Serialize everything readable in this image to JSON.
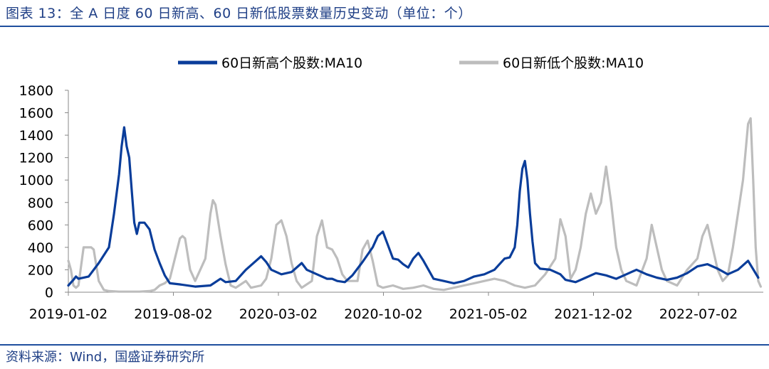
{
  "title": "图表 13：全 A 日度 60 日新高、60 日新低股票数量历史变动（单位：个）",
  "source": "资料来源：Wind，国盛证券研究所",
  "colors": {
    "high": "#0a3d9a",
    "low": "#bdbdbd",
    "accent": "#1f3f86"
  },
  "chart_data": {
    "type": "line",
    "title": "",
    "xlabel": "",
    "ylabel": "",
    "ylim": [
      0,
      1800
    ],
    "yticks": [
      "0",
      "200",
      "400",
      "600",
      "800",
      "1000",
      "1200",
      "1400",
      "1600",
      "1800"
    ],
    "xticks": [
      "2019-01-02",
      "2019-08-02",
      "2020-03-02",
      "2020-10-02",
      "2021-05-02",
      "2021-12-02",
      "2022-07-02"
    ],
    "x_range": [
      0,
      1.37
    ],
    "legend_position": "top",
    "series": [
      {
        "name": "60日新高个股数:MA10",
        "key": "high",
        "points": [
          [
            0,
            60
          ],
          [
            0.01,
            110
          ],
          [
            0.015,
            140
          ],
          [
            0.02,
            120
          ],
          [
            0.04,
            140
          ],
          [
            0.06,
            260
          ],
          [
            0.08,
            400
          ],
          [
            0.09,
            700
          ],
          [
            0.1,
            1050
          ],
          [
            0.105,
            1300
          ],
          [
            0.11,
            1470
          ],
          [
            0.115,
            1300
          ],
          [
            0.12,
            1200
          ],
          [
            0.125,
            900
          ],
          [
            0.13,
            620
          ],
          [
            0.135,
            520
          ],
          [
            0.14,
            620
          ],
          [
            0.15,
            620
          ],
          [
            0.16,
            560
          ],
          [
            0.17,
            380
          ],
          [
            0.18,
            260
          ],
          [
            0.19,
            150
          ],
          [
            0.2,
            80
          ],
          [
            0.22,
            70
          ],
          [
            0.25,
            50
          ],
          [
            0.28,
            60
          ],
          [
            0.3,
            120
          ],
          [
            0.31,
            90
          ],
          [
            0.33,
            100
          ],
          [
            0.35,
            200
          ],
          [
            0.37,
            280
          ],
          [
            0.38,
            320
          ],
          [
            0.39,
            270
          ],
          [
            0.4,
            200
          ],
          [
            0.42,
            160
          ],
          [
            0.44,
            180
          ],
          [
            0.46,
            260
          ],
          [
            0.47,
            200
          ],
          [
            0.49,
            160
          ],
          [
            0.51,
            120
          ],
          [
            0.52,
            120
          ],
          [
            0.53,
            100
          ],
          [
            0.545,
            90
          ],
          [
            0.56,
            150
          ],
          [
            0.58,
            270
          ],
          [
            0.6,
            400
          ],
          [
            0.61,
            500
          ],
          [
            0.62,
            540
          ],
          [
            0.63,
            420
          ],
          [
            0.64,
            300
          ],
          [
            0.65,
            290
          ],
          [
            0.66,
            250
          ],
          [
            0.67,
            220
          ],
          [
            0.68,
            300
          ],
          [
            0.69,
            350
          ],
          [
            0.7,
            280
          ],
          [
            0.72,
            120
          ],
          [
            0.74,
            100
          ],
          [
            0.76,
            80
          ],
          [
            0.78,
            100
          ],
          [
            0.8,
            140
          ],
          [
            0.82,
            160
          ],
          [
            0.84,
            200
          ],
          [
            0.85,
            250
          ],
          [
            0.86,
            300
          ],
          [
            0.87,
            310
          ],
          [
            0.88,
            400
          ],
          [
            0.885,
            600
          ],
          [
            0.89,
            900
          ],
          [
            0.895,
            1100
          ],
          [
            0.9,
            1170
          ],
          [
            0.905,
            1000
          ],
          [
            0.91,
            700
          ],
          [
            0.915,
            450
          ],
          [
            0.92,
            260
          ],
          [
            0.93,
            210
          ],
          [
            0.95,
            200
          ],
          [
            0.97,
            160
          ],
          [
            0.98,
            110
          ],
          [
            1.0,
            90
          ],
          [
            1.02,
            130
          ],
          [
            1.04,
            170
          ],
          [
            1.06,
            150
          ],
          [
            1.08,
            120
          ],
          [
            1.1,
            160
          ],
          [
            1.12,
            200
          ],
          [
            1.14,
            160
          ],
          [
            1.16,
            130
          ],
          [
            1.18,
            110
          ],
          [
            1.2,
            130
          ],
          [
            1.22,
            170
          ],
          [
            1.24,
            230
          ],
          [
            1.26,
            250
          ],
          [
            1.28,
            210
          ],
          [
            1.3,
            160
          ],
          [
            1.32,
            200
          ],
          [
            1.34,
            280
          ],
          [
            1.36,
            130
          ]
        ]
      },
      {
        "name": "60日新低个股数:MA10",
        "key": "low",
        "points": [
          [
            0,
            280
          ],
          [
            0.005,
            200
          ],
          [
            0.01,
            60
          ],
          [
            0.015,
            40
          ],
          [
            0.02,
            60
          ],
          [
            0.03,
            400
          ],
          [
            0.045,
            400
          ],
          [
            0.05,
            380
          ],
          [
            0.06,
            100
          ],
          [
            0.07,
            20
          ],
          [
            0.08,
            10
          ],
          [
            0.1,
            5
          ],
          [
            0.14,
            5
          ],
          [
            0.16,
            10
          ],
          [
            0.17,
            20
          ],
          [
            0.18,
            60
          ],
          [
            0.19,
            80
          ],
          [
            0.2,
            120
          ],
          [
            0.21,
            300
          ],
          [
            0.22,
            480
          ],
          [
            0.225,
            500
          ],
          [
            0.23,
            480
          ],
          [
            0.24,
            200
          ],
          [
            0.25,
            100
          ],
          [
            0.27,
            300
          ],
          [
            0.28,
            700
          ],
          [
            0.285,
            820
          ],
          [
            0.29,
            780
          ],
          [
            0.3,
            500
          ],
          [
            0.31,
            250
          ],
          [
            0.32,
            60
          ],
          [
            0.33,
            40
          ],
          [
            0.35,
            100
          ],
          [
            0.36,
            40
          ],
          [
            0.38,
            60
          ],
          [
            0.39,
            120
          ],
          [
            0.4,
            300
          ],
          [
            0.41,
            600
          ],
          [
            0.42,
            640
          ],
          [
            0.43,
            500
          ],
          [
            0.44,
            260
          ],
          [
            0.45,
            100
          ],
          [
            0.46,
            40
          ],
          [
            0.48,
            100
          ],
          [
            0.49,
            500
          ],
          [
            0.5,
            640
          ],
          [
            0.51,
            400
          ],
          [
            0.52,
            380
          ],
          [
            0.53,
            300
          ],
          [
            0.54,
            160
          ],
          [
            0.55,
            100
          ],
          [
            0.57,
            100
          ],
          [
            0.58,
            380
          ],
          [
            0.59,
            460
          ],
          [
            0.6,
            280
          ],
          [
            0.61,
            60
          ],
          [
            0.62,
            40
          ],
          [
            0.64,
            60
          ],
          [
            0.66,
            30
          ],
          [
            0.68,
            40
          ],
          [
            0.7,
            60
          ],
          [
            0.72,
            30
          ],
          [
            0.74,
            20
          ],
          [
            0.76,
            40
          ],
          [
            0.78,
            60
          ],
          [
            0.8,
            80
          ],
          [
            0.82,
            100
          ],
          [
            0.84,
            120
          ],
          [
            0.86,
            100
          ],
          [
            0.88,
            60
          ],
          [
            0.9,
            40
          ],
          [
            0.92,
            60
          ],
          [
            0.94,
            160
          ],
          [
            0.96,
            300
          ],
          [
            0.97,
            650
          ],
          [
            0.98,
            500
          ],
          [
            0.99,
            120
          ],
          [
            1.0,
            200
          ],
          [
            1.01,
            400
          ],
          [
            1.02,
            700
          ],
          [
            1.03,
            880
          ],
          [
            1.04,
            700
          ],
          [
            1.05,
            800
          ],
          [
            1.06,
            1120
          ],
          [
            1.07,
            800
          ],
          [
            1.08,
            400
          ],
          [
            1.09,
            200
          ],
          [
            1.1,
            100
          ],
          [
            1.12,
            60
          ],
          [
            1.14,
            300
          ],
          [
            1.15,
            600
          ],
          [
            1.16,
            400
          ],
          [
            1.17,
            200
          ],
          [
            1.18,
            100
          ],
          [
            1.2,
            60
          ],
          [
            1.22,
            200
          ],
          [
            1.24,
            300
          ],
          [
            1.25,
            500
          ],
          [
            1.26,
            600
          ],
          [
            1.27,
            400
          ],
          [
            1.28,
            200
          ],
          [
            1.29,
            100
          ],
          [
            1.3,
            150
          ],
          [
            1.31,
            400
          ],
          [
            1.32,
            700
          ],
          [
            1.33,
            1000
          ],
          [
            1.34,
            1500
          ],
          [
            1.345,
            1550
          ],
          [
            1.35,
            1000
          ],
          [
            1.355,
            400
          ],
          [
            1.36,
            100
          ],
          [
            1.365,
            50
          ]
        ]
      }
    ]
  }
}
